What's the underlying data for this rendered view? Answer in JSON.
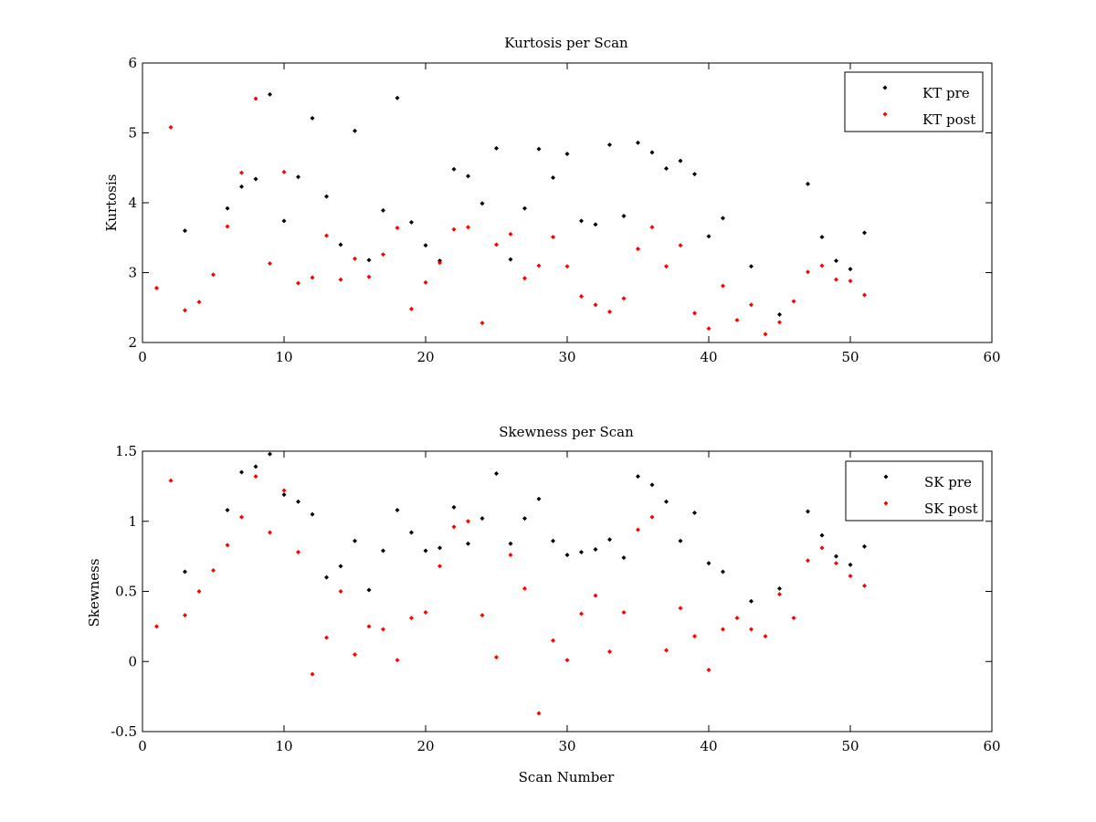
{
  "chart_data": [
    {
      "type": "scatter",
      "title": "Kurtosis per Scan",
      "xlabel": "",
      "ylabel": "Kurtosis",
      "xlim": [
        0,
        60
      ],
      "ylim": [
        2,
        6
      ],
      "xticks": [
        0,
        10,
        20,
        30,
        40,
        50,
        60
      ],
      "yticks": [
        2,
        3,
        4,
        5,
        6
      ],
      "x_tick_labels": [
        "0",
        "10",
        "20",
        "30",
        "40",
        "50",
        "60"
      ],
      "y_tick_labels": [
        "2",
        "3",
        "4",
        "5",
        "6"
      ],
      "legend_position": "top-right",
      "x": [
        1,
        2,
        3,
        4,
        5,
        6,
        7,
        8,
        9,
        10,
        11,
        12,
        13,
        14,
        15,
        16,
        17,
        18,
        19,
        20,
        21,
        22,
        23,
        24,
        25,
        26,
        27,
        28,
        29,
        30,
        31,
        32,
        33,
        34,
        35,
        36,
        37,
        38,
        39,
        40,
        41,
        42,
        43,
        44,
        45,
        46,
        47,
        48,
        49,
        50,
        51
      ],
      "series": [
        {
          "name": "KT pre",
          "color": "#000000",
          "values": [
            null,
            null,
            3.6,
            null,
            null,
            3.92,
            4.23,
            4.34,
            5.55,
            3.74,
            4.37,
            5.21,
            4.09,
            3.4,
            5.03,
            3.18,
            3.89,
            5.5,
            3.72,
            3.39,
            3.17,
            4.48,
            4.38,
            3.99,
            4.78,
            3.19,
            3.92,
            4.77,
            4.36,
            4.7,
            3.74,
            3.69,
            4.83,
            3.81,
            4.86,
            4.72,
            4.49,
            4.6,
            4.41,
            3.52,
            3.78,
            null,
            3.09,
            null,
            2.4,
            null,
            4.27,
            3.51,
            3.17,
            3.05,
            3.57
          ]
        },
        {
          "name": "KT post",
          "color": "#ff0000",
          "values": [
            2.78,
            5.08,
            2.46,
            2.58,
            2.97,
            3.66,
            4.43,
            5.49,
            3.13,
            4.44,
            2.85,
            2.93,
            3.53,
            2.9,
            3.2,
            2.94,
            3.26,
            3.64,
            2.48,
            2.86,
            3.14,
            3.62,
            3.65,
            2.28,
            3.4,
            3.55,
            2.92,
            3.1,
            3.51,
            3.09,
            2.66,
            2.54,
            2.44,
            2.63,
            3.34,
            3.65,
            3.09,
            3.39,
            2.42,
            2.2,
            2.81,
            2.32,
            2.54,
            2.12,
            2.29,
            2.59,
            3.01,
            3.1,
            2.9,
            2.88,
            2.68
          ]
        }
      ]
    },
    {
      "type": "scatter",
      "title": "Skewness per Scan",
      "xlabel": "Scan Number",
      "ylabel": "Skewness",
      "xlim": [
        0,
        60
      ],
      "ylim": [
        -0.5,
        1.5
      ],
      "xticks": [
        0,
        10,
        20,
        30,
        40,
        50,
        60
      ],
      "yticks": [
        -0.5,
        0,
        0.5,
        1,
        1.5
      ],
      "x_tick_labels": [
        "0",
        "10",
        "20",
        "30",
        "40",
        "50",
        "60"
      ],
      "y_tick_labels": [
        "-0.5",
        "0",
        "0.5",
        "1",
        "1.5"
      ],
      "legend_position": "top-right",
      "x": [
        1,
        2,
        3,
        4,
        5,
        6,
        7,
        8,
        9,
        10,
        11,
        12,
        13,
        14,
        15,
        16,
        17,
        18,
        19,
        20,
        21,
        22,
        23,
        24,
        25,
        26,
        27,
        28,
        29,
        30,
        31,
        32,
        33,
        34,
        35,
        36,
        37,
        38,
        39,
        40,
        41,
        42,
        43,
        44,
        45,
        46,
        47,
        48,
        49,
        50,
        51
      ],
      "series": [
        {
          "name": "SK pre",
          "color": "#000000",
          "values": [
            null,
            null,
            0.64,
            null,
            null,
            1.08,
            1.35,
            1.39,
            1.48,
            1.19,
            1.14,
            1.05,
            0.6,
            0.68,
            0.86,
            0.51,
            0.79,
            1.08,
            0.92,
            0.79,
            0.81,
            1.1,
            0.84,
            1.02,
            1.34,
            0.84,
            1.02,
            1.16,
            0.86,
            0.76,
            0.78,
            0.8,
            0.87,
            0.74,
            1.32,
            1.26,
            1.14,
            0.86,
            1.06,
            0.7,
            0.64,
            null,
            0.43,
            null,
            0.52,
            null,
            1.07,
            0.9,
            0.75,
            0.69,
            0.82
          ]
        },
        {
          "name": "SK post",
          "color": "#ff0000",
          "values": [
            0.25,
            1.29,
            0.33,
            0.5,
            0.65,
            0.83,
            1.03,
            1.32,
            0.92,
            1.22,
            0.78,
            -0.09,
            0.17,
            0.5,
            0.05,
            0.25,
            0.23,
            0.01,
            0.31,
            0.35,
            0.68,
            0.96,
            1.0,
            0.33,
            0.03,
            0.76,
            0.52,
            -0.37,
            0.15,
            0.01,
            0.34,
            0.47,
            0.07,
            0.35,
            0.94,
            1.03,
            0.08,
            0.38,
            0.18,
            -0.06,
            0.23,
            0.31,
            0.23,
            0.18,
            0.48,
            0.31,
            0.72,
            0.81,
            0.7,
            0.61,
            0.54
          ]
        }
      ]
    }
  ]
}
